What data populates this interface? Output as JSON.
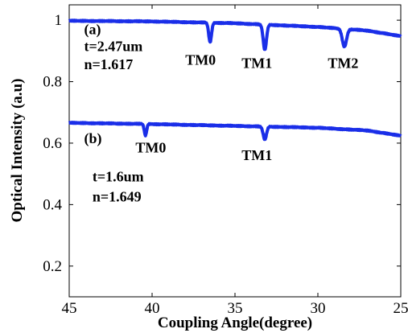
{
  "chart_data": {
    "type": "line",
    "xlabel": "Coupling Angle(degree)",
    "ylabel": "Optical Intensity (a.u)",
    "xlim": [
      45,
      25
    ],
    "ylim": [
      0.1,
      1.05
    ],
    "x_reversed": true,
    "xticks": [
      45,
      40,
      35,
      30,
      25
    ],
    "yticks": [
      0.2,
      0.4,
      0.6,
      0.8,
      1
    ],
    "ytick_labels": [
      "0.2",
      "0.4",
      "0.6",
      "0.8",
      "1"
    ],
    "grid": false,
    "line_color": "#1a2ee8",
    "series": [
      {
        "baseline": [
          [
            45,
            0.998
          ],
          [
            40,
            0.996
          ],
          [
            35,
            0.99
          ],
          [
            30,
            0.978
          ],
          [
            27,
            0.966
          ],
          [
            25,
            0.948
          ]
        ],
        "dips": [
          {
            "x": 36.5,
            "depth": 0.063,
            "width": 0.12
          },
          {
            "x": 33.2,
            "depth": 0.082,
            "width": 0.14
          },
          {
            "x": 28.4,
            "depth": 0.058,
            "width": 0.18
          }
        ]
      },
      {
        "baseline": [
          [
            45,
            0.666
          ],
          [
            40,
            0.662
          ],
          [
            35,
            0.656
          ],
          [
            30,
            0.65
          ],
          [
            27,
            0.641
          ],
          [
            25,
            0.624
          ]
        ],
        "dips": [
          {
            "x": 40.4,
            "depth": 0.037,
            "width": 0.1
          },
          {
            "x": 33.2,
            "depth": 0.042,
            "width": 0.14
          }
        ]
      }
    ],
    "annotations": [
      {
        "id": "a-label",
        "text": "(a)",
        "x": 44.1,
        "y": 0.955
      },
      {
        "id": "a-thickness",
        "text": "t=2.47um",
        "x": 44.1,
        "y": 0.9
      },
      {
        "id": "a-index",
        "text": "n=1.617",
        "x": 44.1,
        "y": 0.84
      },
      {
        "id": "a-tm0",
        "text": "TM0",
        "x": 38.0,
        "y": 0.855
      },
      {
        "id": "a-tm1",
        "text": "TM1",
        "x": 34.6,
        "y": 0.845
      },
      {
        "id": "a-tm2",
        "text": "TM2",
        "x": 29.4,
        "y": 0.845
      },
      {
        "id": "b-label",
        "text": "(b)",
        "x": 44.1,
        "y": 0.6
      },
      {
        "id": "b-tm0",
        "text": "TM0",
        "x": 41.0,
        "y": 0.57
      },
      {
        "id": "b-tm1",
        "text": "TM1",
        "x": 34.6,
        "y": 0.545
      },
      {
        "id": "b-thickness",
        "text": "t=1.6um",
        "x": 43.6,
        "y": 0.475
      },
      {
        "id": "b-index",
        "text": "n=1.649",
        "x": 43.6,
        "y": 0.41
      }
    ]
  }
}
